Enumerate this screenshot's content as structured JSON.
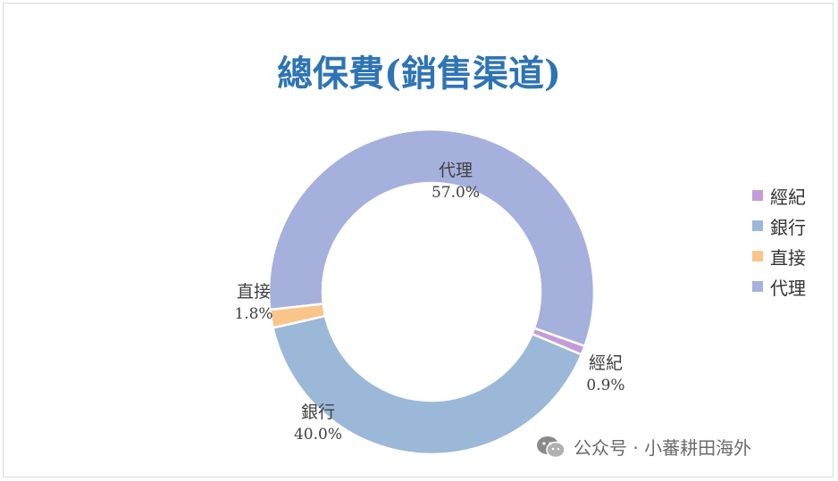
{
  "chart_data": {
    "type": "pie",
    "title": "總保費(銷售渠道)",
    "categories": [
      "經紀",
      "銀行",
      "直接",
      "代理"
    ],
    "values": [
      0.9,
      40.0,
      1.8,
      57.0
    ],
    "labels": [
      "0.9%",
      "40.0%",
      "1.8%",
      "57.0%"
    ],
    "colors": [
      "#c49bd9",
      "#9bb8d8",
      "#fac58a",
      "#a6b0dd"
    ],
    "legend": "right",
    "legend_items": [
      "經紀",
      "銀行",
      "直接",
      "代理"
    ],
    "donut": true
  },
  "watermark": {
    "icon": "wechat-icon",
    "text": "公众号 · 小蕃耕田海外"
  }
}
